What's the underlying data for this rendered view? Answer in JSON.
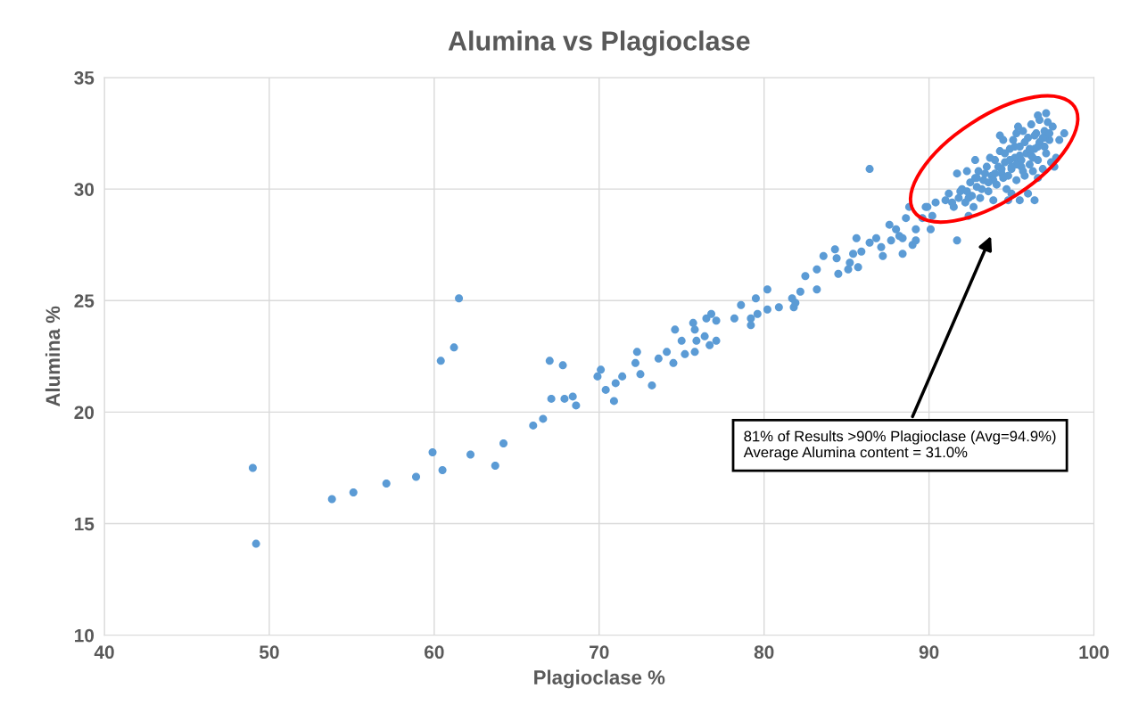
{
  "chart_data": {
    "type": "scatter",
    "title": "Alumina vs Plagioclase",
    "xlabel": "Plagioclase %",
    "ylabel": "Alumina %",
    "xlim": [
      40,
      100
    ],
    "xticks": [
      40,
      50,
      60,
      70,
      80,
      90,
      100
    ],
    "ylim": [
      10,
      35
    ],
    "yticks": [
      10,
      15,
      20,
      25,
      30,
      35
    ],
    "grid": true,
    "marker": "circle",
    "series": [
      {
        "color": "#5b9bd5",
        "x": [
          49.0,
          49.2,
          53.8,
          55.1,
          57.1,
          58.9,
          59.9,
          60.5,
          60.4,
          61.2,
          61.5,
          62.2,
          63.7,
          64.2,
          66.0,
          66.6,
          67.0,
          67.1,
          67.8,
          67.9,
          68.4,
          68.6,
          69.9,
          70.1,
          70.4,
          70.9,
          71.0,
          71.4,
          72.2,
          72.3,
          72.5,
          73.2,
          73.6,
          74.1,
          74.5,
          74.6,
          75.0,
          75.2,
          75.7,
          75.8,
          75.9,
          75.8,
          76.4,
          76.7,
          76.5,
          76.8,
          77.1,
          77.1,
          78.2,
          78.6,
          79.2,
          79.2,
          79.5,
          79.6,
          80.2,
          80.2,
          80.9,
          81.7,
          81.8,
          81.9,
          82.2,
          82.5,
          83.2,
          83.2,
          83.6,
          84.3,
          84.4,
          84.5,
          85.1,
          85.2,
          85.4,
          85.6,
          85.7,
          85.9,
          86.4,
          86.4,
          86.8,
          87.1,
          87.2,
          87.6,
          87.7,
          88.0,
          88.2,
          88.4,
          88.4,
          88.6,
          88.8,
          89.0,
          89.2,
          89.2,
          89.6,
          89.8,
          90.1,
          91.0,
          91.7,
          92.3,
          92.8,
          94.3,
          95.3,
          97.1,
          98.2,
          97.9,
          97.7,
          97.6,
          96.6,
          96.4,
          95.5,
          94.8,
          92.4,
          91.7,
          90.4,
          89.9,
          90.2,
          91.2,
          91.5,
          91.8,
          92.0,
          92.2,
          92.5,
          92.6,
          92.9,
          93.0,
          93.1,
          93.3,
          93.5,
          93.6,
          93.8,
          94.0,
          94.1,
          94.3,
          94.4,
          94.6,
          94.7,
          94.9,
          95.0,
          95.1,
          95.2,
          95.3,
          95.5,
          95.6,
          95.7,
          95.8,
          95.9,
          96.0,
          96.1,
          96.2,
          96.3,
          96.4,
          96.5,
          96.6,
          96.7,
          96.9,
          97.0,
          97.1,
          97.2,
          97.3,
          97.4,
          97.5,
          96.0,
          95.0,
          93.9,
          92.7,
          94.5,
          95.4,
          96.6,
          93.4,
          93.7,
          94.2,
          94.6,
          94.9,
          95.2,
          95.5,
          95.8,
          96.1,
          96.4,
          96.7,
          97.0,
          97.3,
          93.9,
          94.4,
          94.8,
          95.3,
          95.7,
          96.2,
          96.6,
          97.0,
          92.3,
          92.8,
          93.2,
          93.6,
          94.0,
          94.5,
          95.0,
          95.6,
          96.3,
          96.9,
          91.4,
          91.9,
          92.4,
          92.9
        ],
        "values": [
          17.5,
          14.1,
          16.1,
          16.4,
          16.8,
          17.1,
          18.2,
          17.4,
          22.3,
          22.9,
          25.1,
          18.1,
          17.6,
          18.6,
          19.4,
          19.7,
          22.3,
          20.6,
          22.1,
          20.6,
          20.7,
          20.3,
          21.6,
          21.9,
          21.0,
          20.5,
          21.3,
          21.6,
          22.2,
          22.7,
          21.7,
          21.2,
          22.4,
          22.7,
          22.2,
          23.7,
          23.2,
          22.6,
          24.0,
          23.7,
          23.2,
          22.7,
          23.4,
          23.0,
          24.2,
          24.4,
          24.1,
          23.2,
          24.2,
          24.8,
          24.2,
          23.9,
          25.1,
          24.4,
          25.5,
          24.6,
          24.7,
          25.1,
          24.7,
          24.9,
          25.4,
          26.1,
          26.4,
          25.5,
          27.0,
          27.3,
          26.9,
          26.2,
          26.4,
          26.7,
          27.1,
          27.8,
          26.5,
          27.2,
          27.6,
          30.9,
          27.8,
          27.4,
          27.0,
          28.4,
          27.7,
          28.2,
          27.9,
          27.1,
          27.8,
          28.7,
          29.2,
          27.5,
          27.7,
          28.2,
          28.7,
          29.2,
          28.2,
          29.5,
          30.7,
          30.8,
          31.3,
          32.4,
          32.5,
          33.4,
          32.5,
          32.2,
          31.4,
          31.0,
          30.5,
          29.5,
          29.5,
          29.5,
          28.8,
          27.7,
          29.4,
          29.2,
          28.8,
          29.8,
          29.2,
          29.6,
          30.0,
          29.4,
          30.3,
          29.7,
          30.1,
          30.8,
          29.6,
          30.4,
          31.0,
          29.9,
          30.6,
          31.3,
          30.2,
          31.7,
          30.7,
          31.2,
          30.0,
          31.8,
          30.9,
          32.2,
          31.4,
          30.4,
          31.9,
          31.0,
          32.6,
          30.6,
          31.6,
          32.3,
          31.1,
          32.9,
          30.8,
          31.8,
          32.5,
          31.3,
          33.1,
          30.9,
          32.6,
          31.6,
          33.0,
          32.2,
          31.2,
          32.8,
          29.8,
          29.8,
          29.5,
          29.2,
          32.2,
          32.8,
          33.3,
          30.7,
          31.4,
          31.0,
          31.6,
          31.3,
          31.9,
          31.5,
          32.1,
          31.8,
          32.4,
          32.1,
          32.3,
          32.5,
          30.4,
          30.9,
          30.6,
          31.1,
          30.8,
          31.5,
          31.9,
          31.9,
          29.9,
          30.5,
          30.0,
          30.3,
          30.7,
          30.5,
          31.0,
          31.3,
          31.4,
          32.3,
          29.4,
          29.9,
          29.6,
          30.5
        ]
      }
    ],
    "annotations": [
      "81% of Results >90% Plagioclase (Avg=94.9%)\nAverage Alumina content = 31.0%"
    ]
  }
}
